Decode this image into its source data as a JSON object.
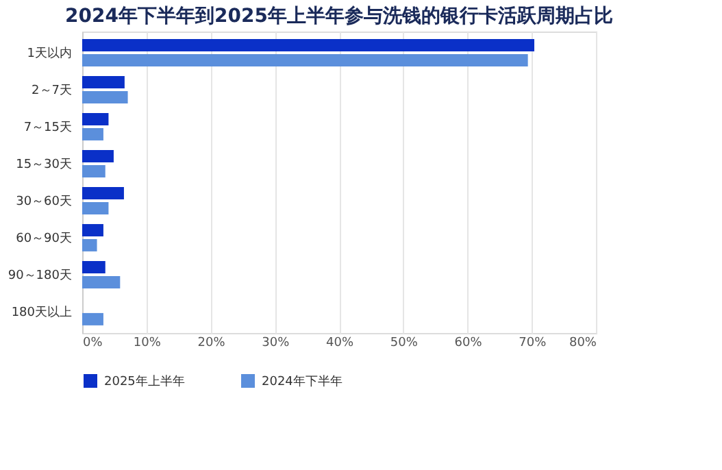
{
  "chart_data": {
    "type": "bar",
    "orientation": "horizontal",
    "title": "2024年下半年到2025年上半年参与洗钱的银行卡活跃周期占比",
    "categories": [
      "1天以内",
      "2～7天",
      "7～15天",
      "15～30天",
      "30～60天",
      "60～90天",
      "90～180天",
      "180天以上"
    ],
    "series": [
      {
        "name": "2025年上半年",
        "color": "#0a30c8",
        "values": [
          70.4,
          6.6,
          4.1,
          4.9,
          6.5,
          3.3,
          3.6,
          null
        ]
      },
      {
        "name": "2024年下半年",
        "color": "#5b8fdc",
        "values": [
          69.4,
          7.1,
          3.3,
          3.6,
          4.1,
          2.3,
          5.9,
          3.3
        ]
      }
    ],
    "xlim": [
      0,
      80
    ],
    "xticks": [
      {
        "value": 0,
        "label": "0%"
      },
      {
        "value": 10,
        "label": "10%"
      },
      {
        "value": 20,
        "label": "20%"
      },
      {
        "value": 30,
        "label": "30%"
      },
      {
        "value": 40,
        "label": "40%"
      },
      {
        "value": 50,
        "label": "50%"
      },
      {
        "value": 60,
        "label": "60%"
      },
      {
        "value": 70,
        "label": "70%"
      },
      {
        "value": 80,
        "label": "80%"
      }
    ],
    "grid": "x",
    "legend": "bottom"
  }
}
